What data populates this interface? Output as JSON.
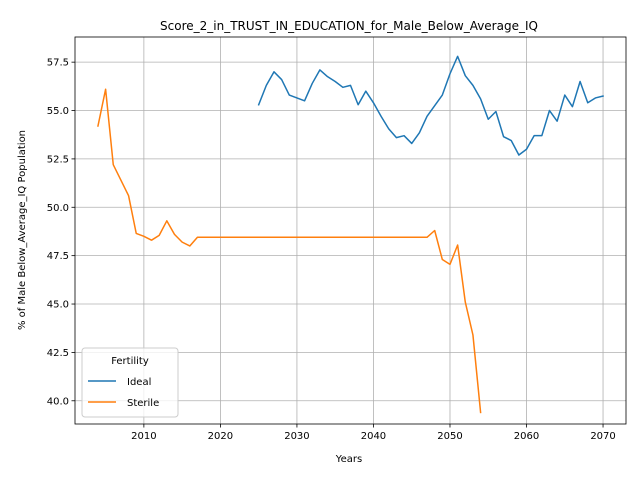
{
  "chart_data": {
    "type": "line",
    "title": "Score_2_in_TRUST_IN_EDUCATION_for_Male_Below_Average_IQ",
    "xlabel": "Years",
    "ylabel": "% of Male Below_Average_IQ Population",
    "xlim": [
      2001,
      2073
    ],
    "ylim": [
      38.8,
      58.8
    ],
    "xticks": [
      2010,
      2020,
      2030,
      2040,
      2050,
      2060,
      2070
    ],
    "yticks": [
      40.0,
      42.5,
      45.0,
      47.5,
      50.0,
      52.5,
      55.0,
      57.5
    ],
    "xtick_labels": [
      "2010",
      "2020",
      "2030",
      "2040",
      "2050",
      "2060",
      "2070"
    ],
    "ytick_labels": [
      "40.0",
      "42.5",
      "45.0",
      "47.5",
      "50.0",
      "52.5",
      "55.0",
      "57.5"
    ],
    "grid": true,
    "legend": {
      "title": "Fertility",
      "position": "lower-left"
    },
    "series": [
      {
        "name": "Ideal",
        "color": "#1f77b4",
        "x": [
          2025,
          2026,
          2027,
          2028,
          2029,
          2030,
          2031,
          2032,
          2033,
          2034,
          2035,
          2036,
          2037,
          2038,
          2039,
          2040,
          2041,
          2042,
          2043,
          2044,
          2045,
          2046,
          2047,
          2048,
          2049,
          2050,
          2051,
          2052,
          2053,
          2054,
          2055,
          2056,
          2057,
          2058,
          2059,
          2060,
          2061,
          2062,
          2063,
          2064,
          2065,
          2066,
          2067,
          2068,
          2069,
          2070
        ],
        "y": [
          55.3,
          56.3,
          57.0,
          56.6,
          55.8,
          55.65,
          55.5,
          56.4,
          57.1,
          56.75,
          56.5,
          56.2,
          56.3,
          55.3,
          56.0,
          55.4,
          54.7,
          54.05,
          53.6,
          53.7,
          53.3,
          53.85,
          54.7,
          55.25,
          55.8,
          56.9,
          57.8,
          56.8,
          56.3,
          55.6,
          54.55,
          54.95,
          53.65,
          53.45,
          52.7,
          53.0,
          53.7,
          53.7,
          55.0,
          54.45,
          55.8,
          55.2,
          56.5,
          55.4,
          55.65,
          55.75
        ]
      },
      {
        "name": "Sterile",
        "color": "#ff7f0e",
        "x": [
          2004,
          2005,
          2006,
          2007,
          2008,
          2009,
          2010,
          2011,
          2012,
          2013,
          2014,
          2015,
          2016,
          2017,
          2018,
          2019,
          2020,
          2021,
          2022,
          2023,
          2024,
          2025,
          2026,
          2027,
          2028,
          2029,
          2030,
          2031,
          2032,
          2033,
          2034,
          2035,
          2036,
          2037,
          2038,
          2039,
          2040,
          2041,
          2042,
          2043,
          2044,
          2045,
          2046,
          2047,
          2048,
          2049,
          2050,
          2051,
          2052,
          2053,
          2054
        ],
        "y": [
          54.2,
          56.1,
          52.2,
          51.4,
          50.6,
          48.65,
          48.5,
          48.3,
          48.55,
          49.3,
          48.6,
          48.2,
          48.0,
          48.45,
          48.45,
          48.45,
          48.45,
          48.45,
          48.45,
          48.45,
          48.45,
          48.45,
          48.45,
          48.45,
          48.45,
          48.45,
          48.45,
          48.45,
          48.45,
          48.45,
          48.45,
          48.45,
          48.45,
          48.45,
          48.45,
          48.45,
          48.45,
          48.45,
          48.45,
          48.45,
          48.45,
          48.45,
          48.45,
          48.45,
          48.8,
          47.3,
          47.05,
          48.05,
          45.1,
          43.4,
          39.4
        ]
      }
    ]
  }
}
